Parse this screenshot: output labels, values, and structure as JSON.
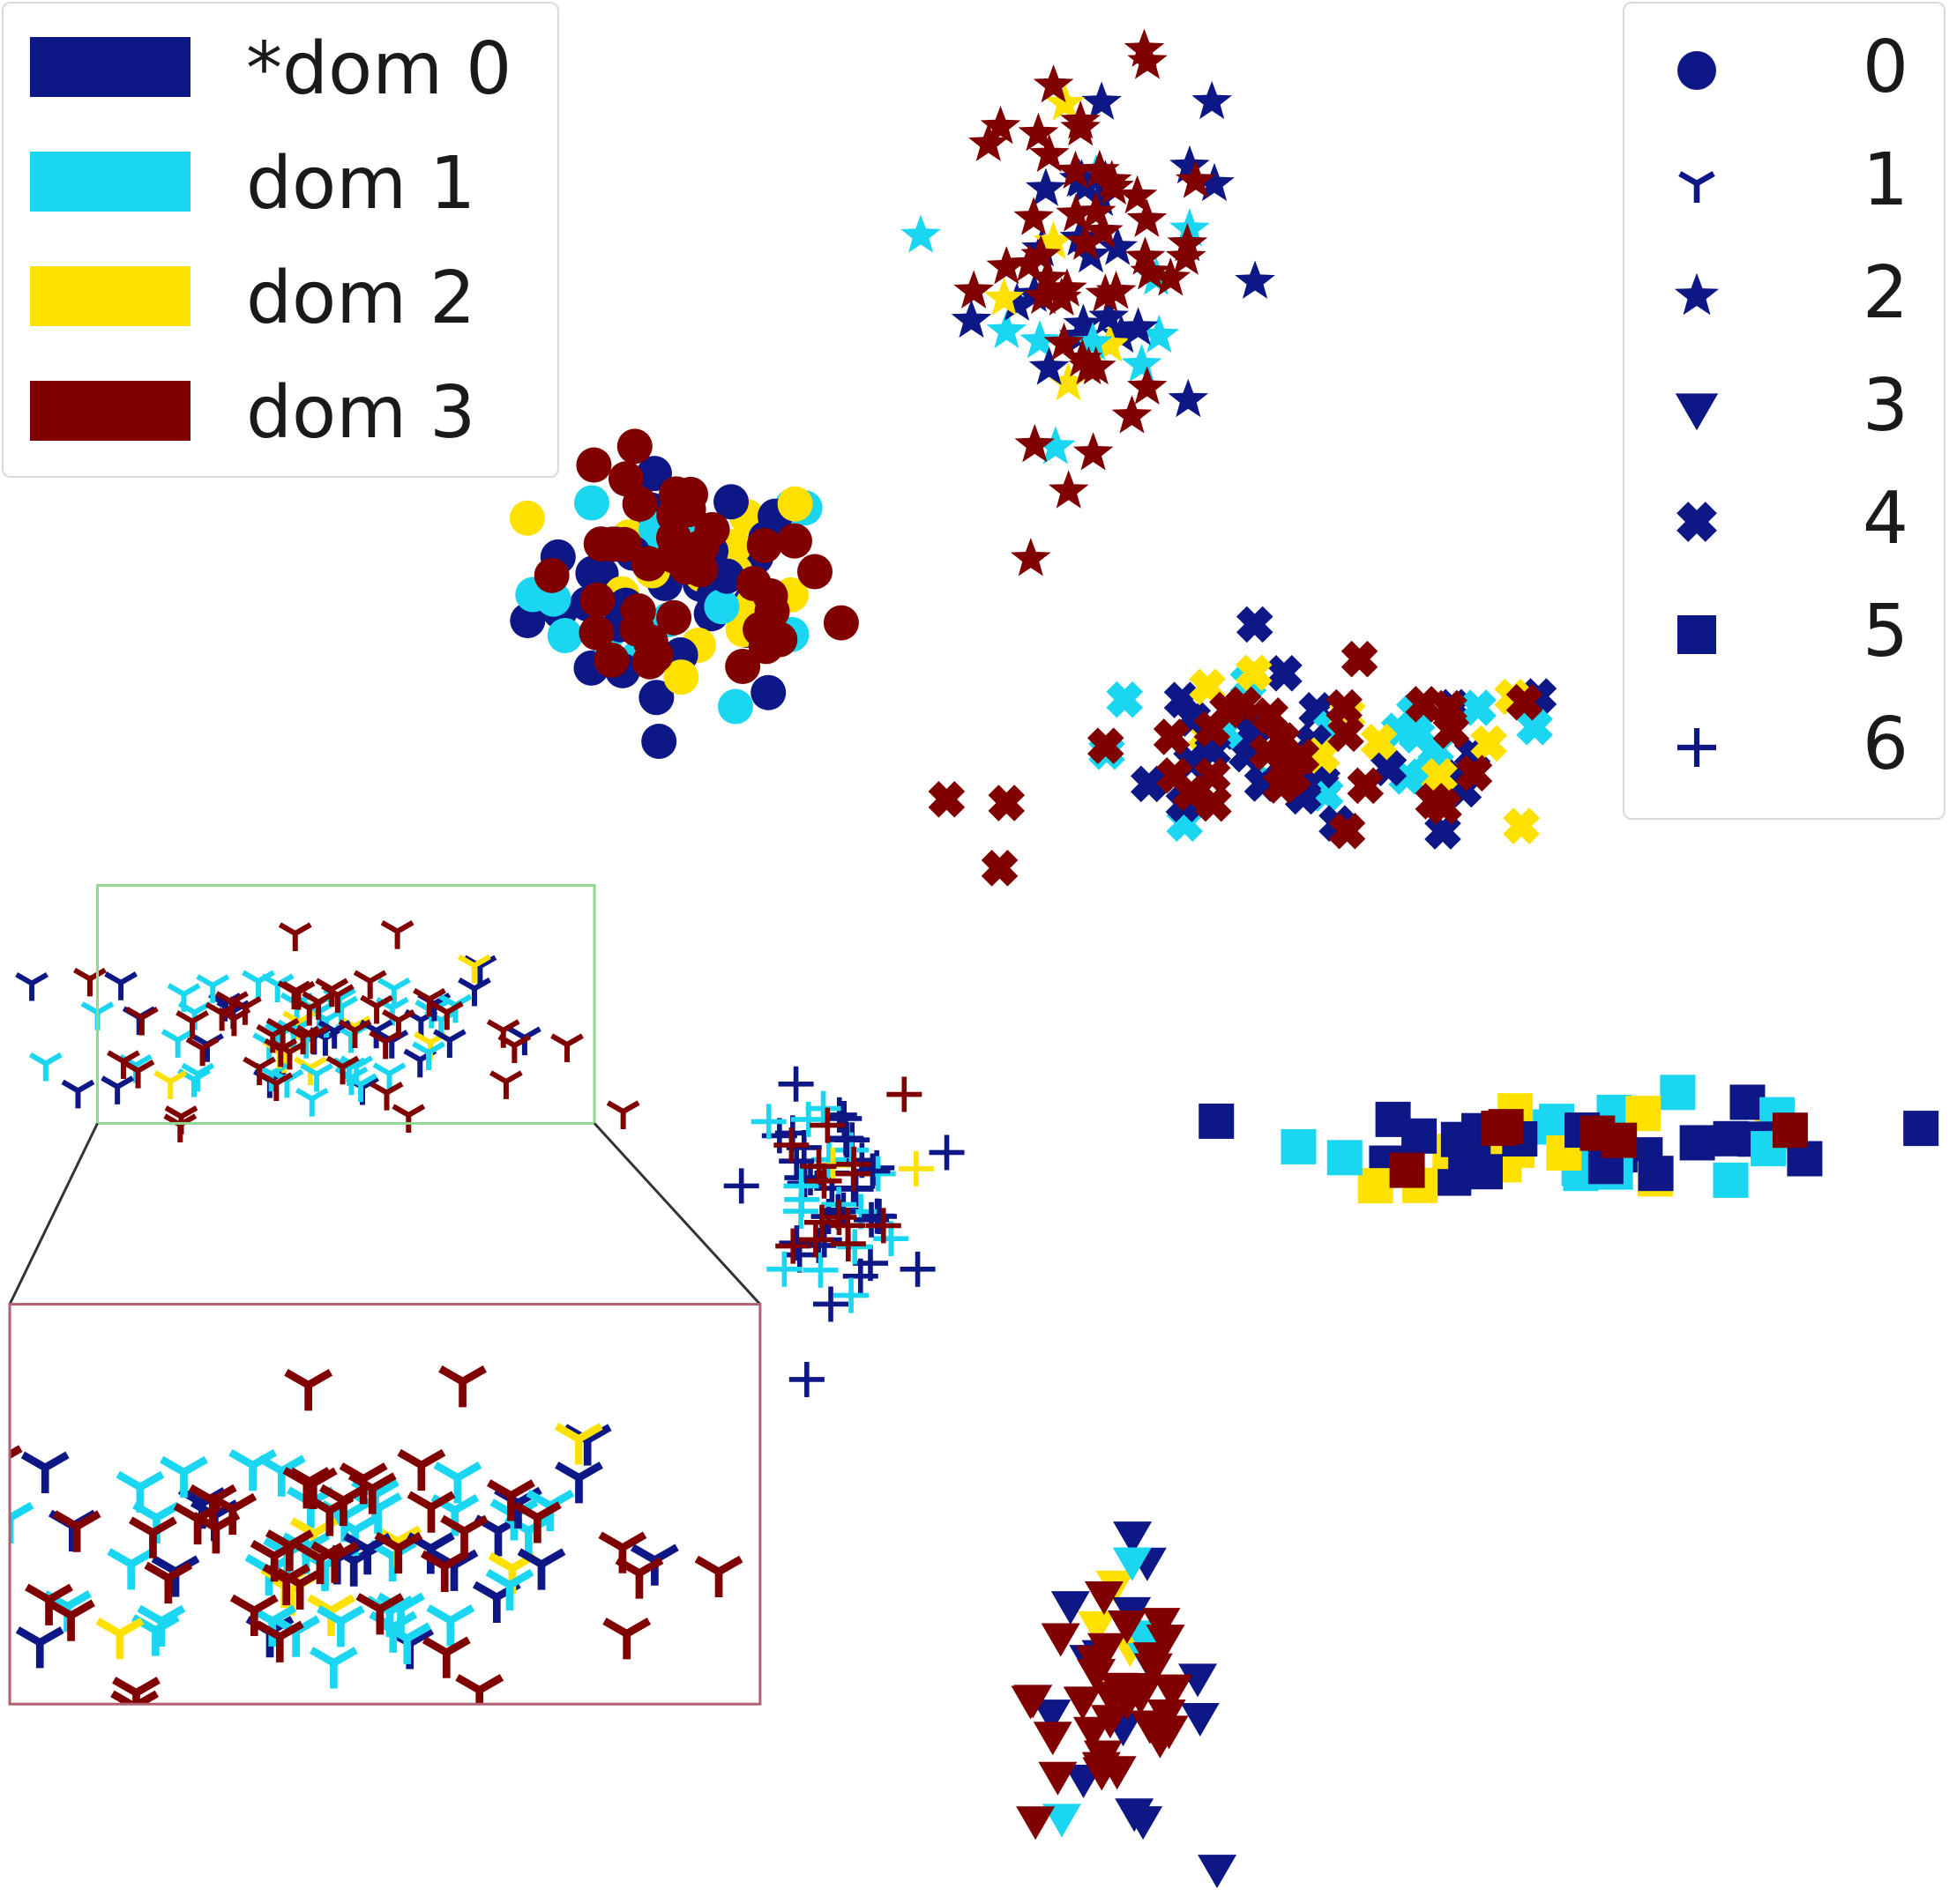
{
  "chart_data": {
    "type": "scatter",
    "title": "",
    "xlabel": "",
    "ylabel": "",
    "grid": false,
    "axes_visible": false,
    "xlim": [
      -100,
      100
    ],
    "ylim": [
      -100,
      100
    ],
    "domain_legend": {
      "placement": "top-left",
      "entries": [
        {
          "label": "*dom 0",
          "color": "#0d1785"
        },
        {
          "label": "dom 1",
          "color": "#1ad6f0"
        },
        {
          "label": "dom 2",
          "color": "#ffe100"
        },
        {
          "label": "dom 3",
          "color": "#800000"
        }
      ]
    },
    "class_legend": {
      "placement": "top-right",
      "marker_color": "#0d1785",
      "entries": [
        {
          "label": "0",
          "marker": "circle"
        },
        {
          "label": "1",
          "marker": "tri_down"
        },
        {
          "label": "2",
          "marker": "star"
        },
        {
          "label": "3",
          "marker": "triangle_down"
        },
        {
          "label": "4",
          "marker": "x_filled"
        },
        {
          "label": "5",
          "marker": "square"
        },
        {
          "label": "6",
          "marker": "plus"
        }
      ]
    },
    "clusters": [
      {
        "class": "0",
        "marker": "circle",
        "center": [
          -30,
          38
        ],
        "spread": [
          14,
          11
        ],
        "counts": [
          35,
          16,
          14,
          40
        ]
      },
      {
        "class": "1",
        "marker": "tri_down",
        "center": [
          -69,
          -8
        ],
        "spread": [
          22,
          8
        ],
        "counts": [
          22,
          36,
          8,
          44
        ]
      },
      {
        "class": "2",
        "marker": "star",
        "center": [
          12,
          73
        ],
        "spread": [
          11,
          17
        ],
        "counts": [
          25,
          10,
          5,
          46
        ]
      },
      {
        "class": "3",
        "marker": "triangle_down",
        "center": [
          15,
          -78
        ],
        "spread": [
          8,
          13
        ],
        "counts": [
          18,
          5,
          4,
          34
        ]
      },
      {
        "class": "4",
        "marker": "x_filled",
        "center": [
          35,
          20
        ],
        "spread": [
          26,
          8
        ],
        "counts": [
          30,
          16,
          10,
          32
        ]
      },
      {
        "class": "5",
        "marker": "square",
        "center": [
          64,
          -20
        ],
        "spread": [
          25,
          4
        ],
        "counts": [
          28,
          14,
          12,
          6
        ]
      },
      {
        "class": "6",
        "marker": "plus",
        "center": [
          -15,
          -25
        ],
        "spread": [
          7,
          9
        ],
        "counts": [
          38,
          16,
          2,
          14
        ]
      }
    ],
    "inset": {
      "source_box_xlim": [
        -90,
        -39
      ],
      "source_box_ylim": [
        -18,
        7
      ],
      "zoom_box_xlim": [
        -99,
        -22
      ],
      "zoom_box_ylim": [
        -79,
        -37
      ],
      "source_border_color": "#90d890",
      "zoom_border_color": "#b06070"
    }
  }
}
